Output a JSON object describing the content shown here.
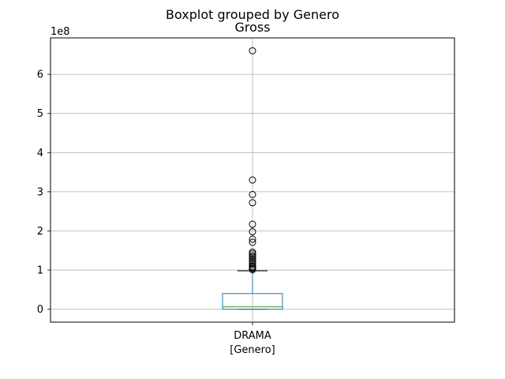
{
  "chart_data": {
    "type": "boxplot",
    "suptitle": "Boxplot grouped by Genero",
    "title": "Gross",
    "xlabel": "[Genero]",
    "ylabel": "",
    "offset_text": "1e8",
    "scale": 100000000,
    "categories": [
      "DRAMA"
    ],
    "ylim": [
      -0.33,
      6.93
    ],
    "yticks": [
      0,
      1,
      2,
      3,
      4,
      5,
      6
    ],
    "grid": true,
    "boxes": [
      {
        "category": "DRAMA",
        "whisker_low": 0.0,
        "q1": 0.0,
        "median": 0.06,
        "q3": 0.4,
        "whisker_high": 0.98,
        "outliers": [
          6.6,
          3.3,
          2.93,
          2.72,
          2.17,
          1.98,
          1.79,
          1.71,
          1.46,
          1.42,
          1.37,
          1.33,
          1.28,
          1.24,
          1.19,
          1.15,
          1.1,
          1.07,
          1.04,
          1.01
        ]
      }
    ]
  },
  "colors": {
    "box": "#1f77b4",
    "median": "#2ca02c",
    "grid": "#b0b0b0",
    "axes": "#000000",
    "flier": "#000000"
  }
}
